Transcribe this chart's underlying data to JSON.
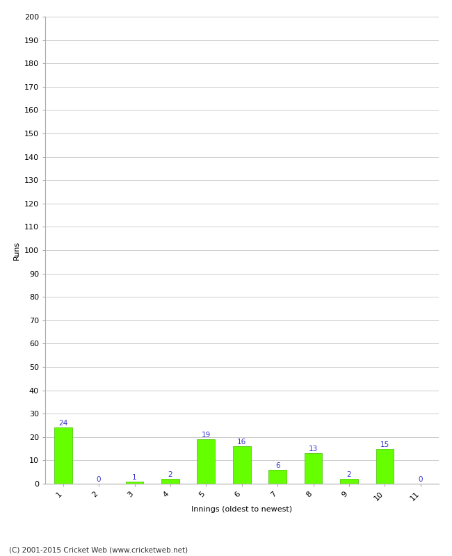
{
  "categories": [
    "1",
    "2",
    "3",
    "4",
    "5",
    "6",
    "7",
    "8",
    "9",
    "10",
    "11"
  ],
  "values": [
    24,
    0,
    1,
    2,
    19,
    16,
    6,
    13,
    2,
    15,
    0
  ],
  "bar_color": "#66ff00",
  "bar_edge_color": "#44bb00",
  "label_color": "#3333cc",
  "ylabel": "Runs",
  "xlabel": "Innings (oldest to newest)",
  "footer": "(C) 2001-2015 Cricket Web (www.cricketweb.net)",
  "ylim": [
    0,
    200
  ],
  "yticks": [
    0,
    10,
    20,
    30,
    40,
    50,
    60,
    70,
    80,
    90,
    100,
    110,
    120,
    130,
    140,
    150,
    160,
    170,
    180,
    190,
    200
  ],
  "background_color": "#ffffff",
  "grid_color": "#cccccc",
  "label_fontsize": 7.5,
  "axis_label_fontsize": 8,
  "tick_fontsize": 8,
  "footer_fontsize": 7.5,
  "bar_width": 0.5
}
